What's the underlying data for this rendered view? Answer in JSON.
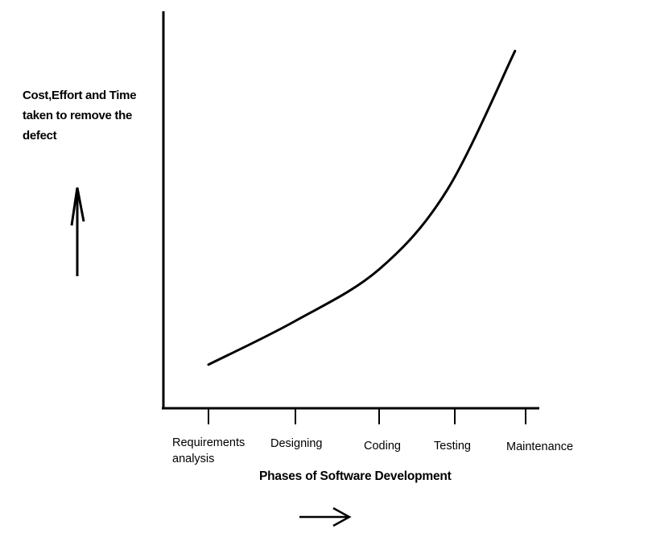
{
  "chart_data": {
    "type": "line",
    "title": "",
    "ylabel_lines": [
      "Cost,Effort and Time",
      "taken to remove the",
      "defect"
    ],
    "xlabel": "Phases of Software Development",
    "categories": [
      {
        "lines": [
          "Requirements",
          "analysis"
        ]
      },
      {
        "lines": [
          "Designing"
        ]
      },
      {
        "lines": [
          "Coding"
        ]
      },
      {
        "lines": [
          "Testing"
        ]
      },
      {
        "lines": [
          "Maintenance"
        ]
      }
    ],
    "grid": false,
    "legend": "none",
    "series": [
      {
        "color": "#000000",
        "points": [
          [
            0.0,
            0.11
          ],
          [
            1.0,
            0.22
          ],
          [
            2.0,
            0.35
          ],
          [
            2.9,
            0.55
          ],
          [
            3.85,
            0.9
          ]
        ]
      }
    ]
  }
}
